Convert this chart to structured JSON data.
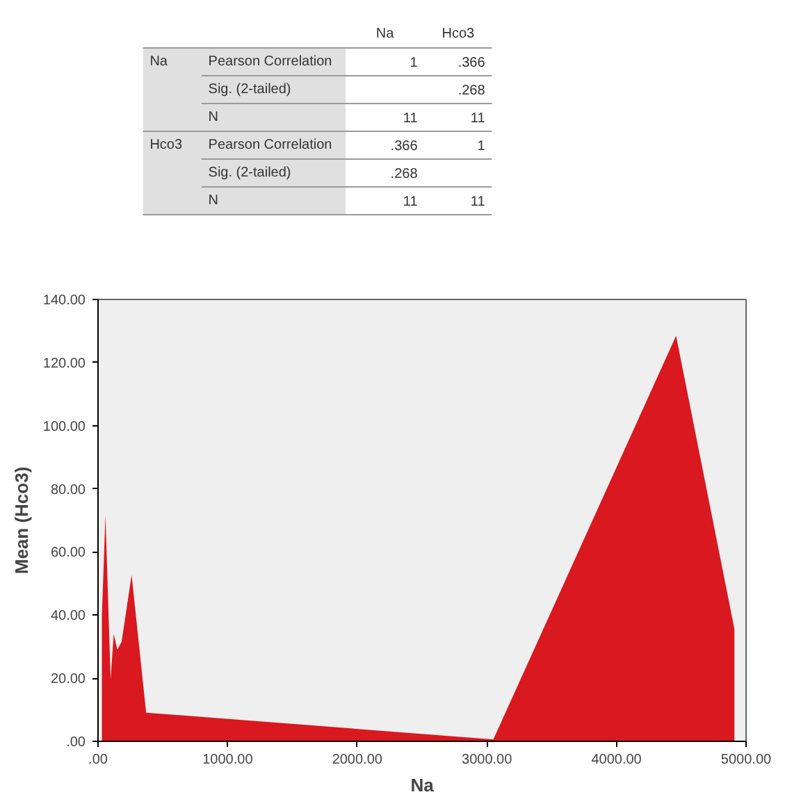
{
  "chart_data": [
    {
      "type": "other",
      "annotations": [
        "Na",
        "Hco3",
        "Na",
        "Pearson Correlation",
        "1",
        ".366",
        "Sig. (2-tailed)",
        ".268",
        "N",
        "11",
        "11",
        "Hco3",
        "Pearson Correlation",
        ".366",
        "1",
        "Sig. (2-tailed)",
        ".268",
        "N",
        "11",
        "11"
      ]
    },
    {
      "type": "area",
      "xlabel": "Na",
      "ylabel": "Mean (Hco3)",
      "x": [
        30,
        57,
        97,
        121,
        149,
        182,
        259,
        371,
        3050,
        4460,
        4910
      ],
      "series": [
        {
          "color": "#d9181f",
          "values": [
            40,
            71.6,
            19.6,
            34,
            29,
            31.6,
            52.7,
            9.1,
            0.6,
            128.5,
            35.6
          ]
        }
      ],
      "xlim": [
        0,
        5000
      ],
      "ylim": [
        0,
        140
      ],
      "xticks": [
        {
          "value": 0,
          "label": ".00"
        },
        {
          "value": 1000,
          "label": "1000.00"
        },
        {
          "value": 2000,
          "label": "2000.00"
        },
        {
          "value": 3000,
          "label": "3000.00"
        },
        {
          "value": 4000,
          "label": "4000.00"
        },
        {
          "value": 5000,
          "label": "5000.00"
        }
      ],
      "yticks": [
        {
          "value": 0,
          "label": ".00"
        },
        {
          "value": 20,
          "label": "20.00"
        },
        {
          "value": 40,
          "label": "40.00"
        },
        {
          "value": 60,
          "label": "60.00"
        },
        {
          "value": 80,
          "label": "80.00"
        },
        {
          "value": 100,
          "label": "100.00"
        },
        {
          "value": 120,
          "label": "120.00"
        },
        {
          "value": 140,
          "label": "140.00"
        }
      ],
      "grid": false
    }
  ]
}
